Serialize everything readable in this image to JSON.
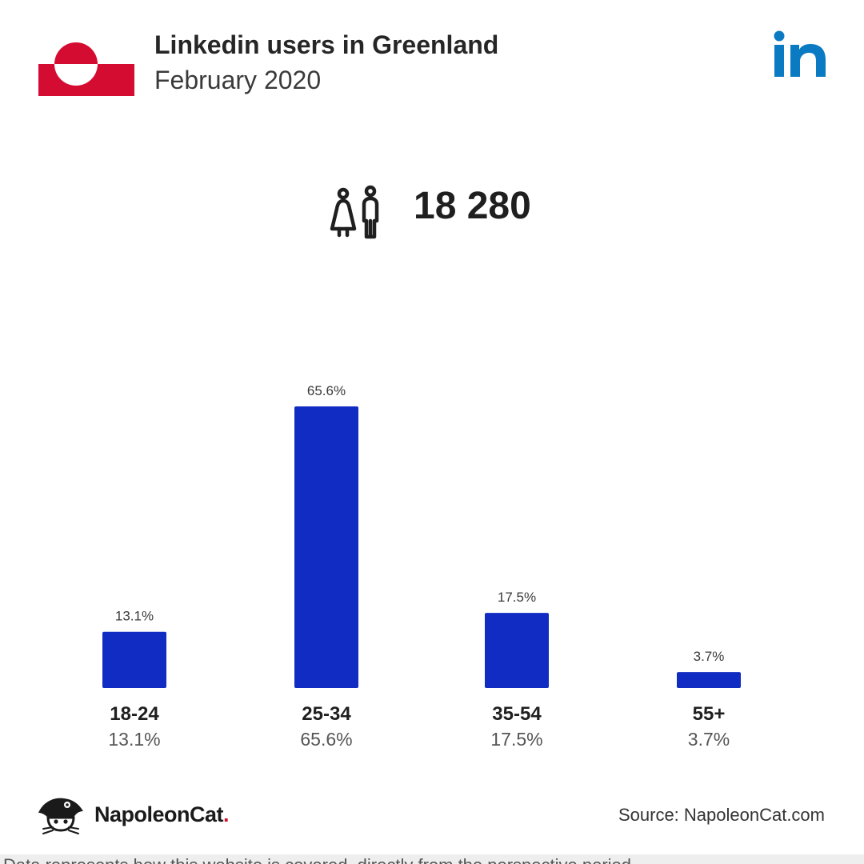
{
  "header": {
    "title": "Linkedin users in Greenland",
    "subtitle": "February 2020"
  },
  "icons": {
    "flag": "greenland-flag-icon",
    "logo": "linkedin-logo-icon",
    "users": "users-icon",
    "brand": "napoleoncat-logo-icon"
  },
  "total": {
    "value": "18 280"
  },
  "chart_data": {
    "type": "bar",
    "categories": [
      "18-24",
      "25-34",
      "35-54",
      "55+"
    ],
    "values": [
      13.1,
      65.6,
      17.5,
      3.7
    ],
    "value_labels": [
      "13.1%",
      "65.6%",
      "17.5%",
      "3.7%"
    ],
    "title": "",
    "xlabel": "",
    "ylabel": "",
    "ylim": [
      0,
      65.6
    ],
    "grid": false,
    "legend": "none",
    "bar_color": "#102cc2"
  },
  "footer": {
    "brand_name": "NapoleonCat",
    "brand_dot": ".",
    "source": "Source: NapoleonCat.com",
    "note": "Data represents how this website is covered, directly from the perspective period."
  },
  "colors": {
    "flag_red": "#d50c32",
    "linkedin_blue": "#0a7ac2",
    "bar": "#102cc2",
    "brand_dot": "#d0102e"
  }
}
